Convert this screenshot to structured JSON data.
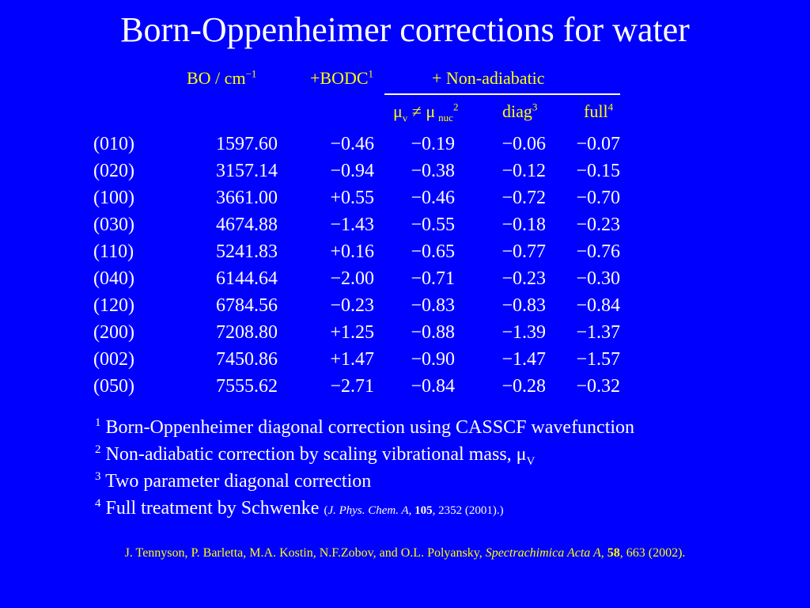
{
  "title": "Born-Oppenheimer corrections for water",
  "headers": {
    "bo": "BO / cm",
    "bo_sup": "−1",
    "bodc": "+BODC",
    "bodc_sup": "1",
    "nonadiabatic": "+ Non-adiabatic",
    "mu_v": "μ",
    "mu_v_sub": "v",
    "neq": " ≠ μ",
    "mu_nuc_sub": "nuc",
    "mu_sup": "2",
    "diag": "diag",
    "diag_sup": "3",
    "full": "full",
    "full_sup": "4"
  },
  "rows": [
    {
      "label": "(010)",
      "bo": "1597.60",
      "bodc": "−0.46",
      "mu": "−0.19",
      "diag": "−0.06",
      "full": "−0.07"
    },
    {
      "label": "(020)",
      "bo": "3157.14",
      "bodc": "−0.94",
      "mu": "−0.38",
      "diag": "−0.12",
      "full": "−0.15"
    },
    {
      "label": "(100)",
      "bo": "3661.00",
      "bodc": "+0.55",
      "mu": "−0.46",
      "diag": "−0.72",
      "full": "−0.70"
    },
    {
      "label": "(030)",
      "bo": "4674.88",
      "bodc": "−1.43",
      "mu": "−0.55",
      "diag": "−0.18",
      "full": "−0.23"
    },
    {
      "label": "(110)",
      "bo": "5241.83",
      "bodc": "+0.16",
      "mu": "−0.65",
      "diag": "−0.77",
      "full": "−0.76"
    },
    {
      "label": "(040)",
      "bo": "6144.64",
      "bodc": "−2.00",
      "mu": "−0.71",
      "diag": "−0.23",
      "full": "−0.30"
    },
    {
      "label": "(120)",
      "bo": "6784.56",
      "bodc": "−0.23",
      "mu": "−0.83",
      "diag": "−0.83",
      "full": "−0.84"
    },
    {
      "label": "(200)",
      "bo": "7208.80",
      "bodc": "+1.25",
      "mu": "−0.88",
      "diag": "−1.39",
      "full": "−1.37"
    },
    {
      "label": "(002)",
      "bo": "7450.86",
      "bodc": "+1.47",
      "mu": "−0.90",
      "diag": "−1.47",
      "full": "−1.57"
    },
    {
      "label": "(050)",
      "bo": "7555.62",
      "bodc": "−2.71",
      "mu": "−0.84",
      "diag": "−0.28",
      "full": "−0.32"
    }
  ],
  "footnotes": {
    "f1_num": "1",
    "f1_text": " Born-Oppenheimer diagonal correction using CASSCF wavefunction",
    "f2_num": "2",
    "f2_text": " Non-adiabatic correction by scaling vibrational mass, ",
    "f2_mu": "μ",
    "f2_sub": "V",
    "f3_num": "3",
    "f3_text": " Two parameter diagonal correction",
    "f4_num": "4",
    "f4_text": " Full treatment by Schwenke ",
    "f4_open": "(",
    "f4_journal": "J. Phys. Chem. A",
    "f4_comma": ", ",
    "f4_vol": "105",
    "f4_rest": ", 2352 (2001).)"
  },
  "citation": {
    "authors": "J. Tennyson, P. Barletta, M.A. Kostin, N.F.Zobov, and O.L. Polyansky, ",
    "journal": "Spectrachimica Acta A,",
    "space": " ",
    "volume": "58",
    "rest": ", 663 (2002)."
  },
  "colors": {
    "background": "#0000ff",
    "title": "#ffffff",
    "header": "#ffff00",
    "body": "#ffffff",
    "citation": "#ffff00"
  }
}
